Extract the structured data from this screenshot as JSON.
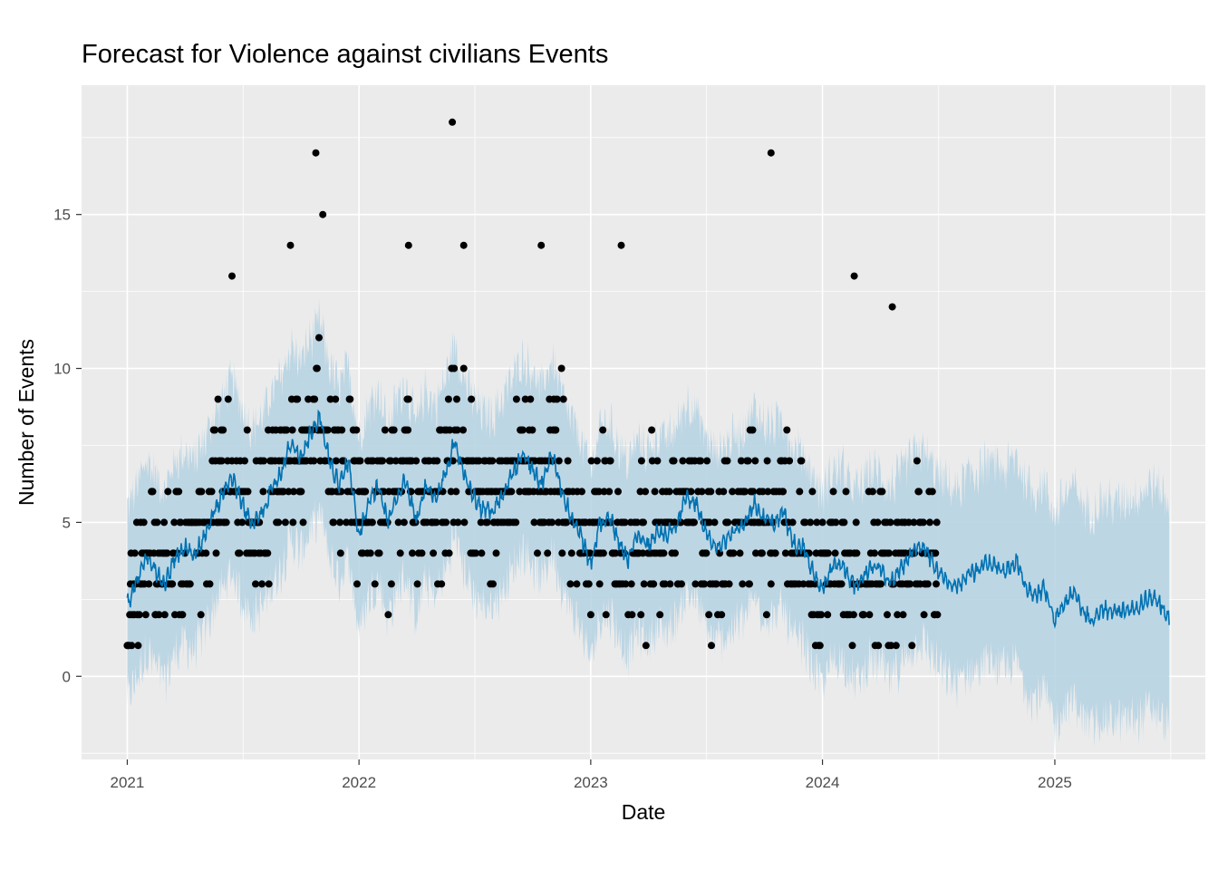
{
  "chart_data": {
    "type": "scatter",
    "title": "Forecast for Violence against civilians Events",
    "xlabel": "Date",
    "ylabel": "Number of Events",
    "x_range": [
      "2020-10-21",
      "2025-08-26"
    ],
    "ylim": [
      -2.7,
      19.2
    ],
    "x_ticks": [
      {
        "date": "2021-01-01",
        "label": "2021"
      },
      {
        "date": "2022-01-01",
        "label": "2022"
      },
      {
        "date": "2023-01-01",
        "label": "2023"
      },
      {
        "date": "2024-01-01",
        "label": "2024"
      },
      {
        "date": "2025-01-01",
        "label": "2025"
      }
    ],
    "y_ticks": [
      0,
      5,
      10,
      15
    ],
    "grid": true,
    "colors": {
      "panel": "#ebebeb",
      "grid": "#ffffff",
      "forecast_line": "#0072b2",
      "interval": "#b8d4e3",
      "points": "#000000"
    },
    "history_end": "2024-06-30",
    "forecast_end": "2025-06-30",
    "series": [
      {
        "kind": "observed",
        "date_range": [
          "2021-01-01",
          "2024-06-30"
        ],
        "values_per_level": [
          1,
          2,
          3,
          4,
          5,
          6,
          7,
          8,
          9,
          10,
          11,
          12,
          13,
          14,
          15,
          17,
          18
        ]
      },
      {
        "kind": "forecast",
        "points": [
          [
            "2021-01-01",
            2.3
          ],
          [
            "2021-01-15",
            3.0
          ],
          [
            "2021-02-01",
            3.9
          ],
          [
            "2021-02-15",
            3.4
          ],
          [
            "2021-03-01",
            2.9
          ],
          [
            "2021-03-15",
            3.8
          ],
          [
            "2021-04-01",
            4.2
          ],
          [
            "2021-04-15",
            3.9
          ],
          [
            "2021-05-01",
            4.5
          ],
          [
            "2021-05-15",
            5.2
          ],
          [
            "2021-06-01",
            6.0
          ],
          [
            "2021-06-15",
            6.5
          ],
          [
            "2021-07-01",
            5.6
          ],
          [
            "2021-07-15",
            5.0
          ],
          [
            "2021-08-01",
            5.3
          ],
          [
            "2021-08-15",
            6.0
          ],
          [
            "2021-09-01",
            6.6
          ],
          [
            "2021-09-15",
            7.6
          ],
          [
            "2021-10-01",
            7.1
          ],
          [
            "2021-10-15",
            7.8
          ],
          [
            "2021-11-01",
            8.4
          ],
          [
            "2021-11-15",
            7.0
          ],
          [
            "2021-12-01",
            6.2
          ],
          [
            "2021-12-15",
            7.0
          ],
          [
            "2022-01-01",
            4.6
          ],
          [
            "2022-01-15",
            5.6
          ],
          [
            "2022-02-01",
            6.2
          ],
          [
            "2022-02-15",
            5.0
          ],
          [
            "2022-03-01",
            5.8
          ],
          [
            "2022-03-15",
            6.4
          ],
          [
            "2022-04-01",
            5.0
          ],
          [
            "2022-04-15",
            6.2
          ],
          [
            "2022-05-01",
            5.7
          ],
          [
            "2022-05-15",
            6.4
          ],
          [
            "2022-06-01",
            7.7
          ],
          [
            "2022-06-15",
            6.6
          ],
          [
            "2022-07-01",
            5.8
          ],
          [
            "2022-07-15",
            5.4
          ],
          [
            "2022-08-01",
            5.4
          ],
          [
            "2022-08-15",
            5.9
          ],
          [
            "2022-09-01",
            6.6
          ],
          [
            "2022-09-15",
            7.2
          ],
          [
            "2022-10-01",
            6.8
          ],
          [
            "2022-10-15",
            6.2
          ],
          [
            "2022-11-01",
            7.2
          ],
          [
            "2022-11-15",
            6.1
          ],
          [
            "2022-12-01",
            5.2
          ],
          [
            "2022-12-15",
            4.7
          ],
          [
            "2023-01-01",
            3.6
          ],
          [
            "2023-01-15",
            5.0
          ],
          [
            "2023-02-01",
            5.1
          ],
          [
            "2023-02-15",
            4.3
          ],
          [
            "2023-03-01",
            3.8
          ],
          [
            "2023-03-15",
            4.6
          ],
          [
            "2023-04-01",
            4.2
          ],
          [
            "2023-04-15",
            4.7
          ],
          [
            "2023-05-01",
            4.6
          ],
          [
            "2023-05-15",
            4.9
          ],
          [
            "2023-06-01",
            5.8
          ],
          [
            "2023-06-15",
            5.6
          ],
          [
            "2023-07-01",
            4.7
          ],
          [
            "2023-07-15",
            4.2
          ],
          [
            "2023-08-01",
            4.4
          ],
          [
            "2023-08-15",
            4.7
          ],
          [
            "2023-09-01",
            5.0
          ],
          [
            "2023-09-15",
            5.6
          ],
          [
            "2023-10-01",
            5.1
          ],
          [
            "2023-10-15",
            5.0
          ],
          [
            "2023-11-01",
            5.3
          ],
          [
            "2023-11-15",
            4.3
          ],
          [
            "2023-12-01",
            4.2
          ],
          [
            "2023-12-15",
            3.5
          ],
          [
            "2024-01-01",
            2.8
          ],
          [
            "2024-01-15",
            3.5
          ],
          [
            "2024-02-01",
            3.7
          ],
          [
            "2024-02-15",
            3.0
          ],
          [
            "2024-03-01",
            3.0
          ],
          [
            "2024-03-15",
            3.6
          ],
          [
            "2024-04-01",
            3.5
          ],
          [
            "2024-04-15",
            3.0
          ],
          [
            "2024-05-01",
            3.4
          ],
          [
            "2024-05-15",
            3.8
          ],
          [
            "2024-06-01",
            4.3
          ],
          [
            "2024-06-15",
            4.0
          ],
          [
            "2024-07-01",
            3.4
          ],
          [
            "2024-07-15",
            3.1
          ],
          [
            "2024-08-01",
            2.9
          ],
          [
            "2024-08-15",
            3.3
          ],
          [
            "2024-09-01",
            3.4
          ],
          [
            "2024-09-15",
            3.7
          ],
          [
            "2024-10-01",
            3.6
          ],
          [
            "2024-10-15",
            3.4
          ],
          [
            "2024-11-01",
            3.8
          ],
          [
            "2024-11-15",
            3.0
          ],
          [
            "2024-12-01",
            2.6
          ],
          [
            "2024-12-15",
            2.9
          ],
          [
            "2025-01-01",
            1.8
          ],
          [
            "2025-01-15",
            2.4
          ],
          [
            "2025-02-01",
            2.7
          ],
          [
            "2025-02-15",
            2.1
          ],
          [
            "2025-03-01",
            1.8
          ],
          [
            "2025-03-15",
            2.2
          ],
          [
            "2025-04-01",
            2.1
          ],
          [
            "2025-04-15",
            2.1
          ],
          [
            "2025-05-01",
            2.2
          ],
          [
            "2025-05-15",
            2.3
          ],
          [
            "2025-06-01",
            2.6
          ],
          [
            "2025-06-15",
            2.4
          ],
          [
            "2025-06-30",
            1.9
          ]
        ]
      }
    ]
  }
}
